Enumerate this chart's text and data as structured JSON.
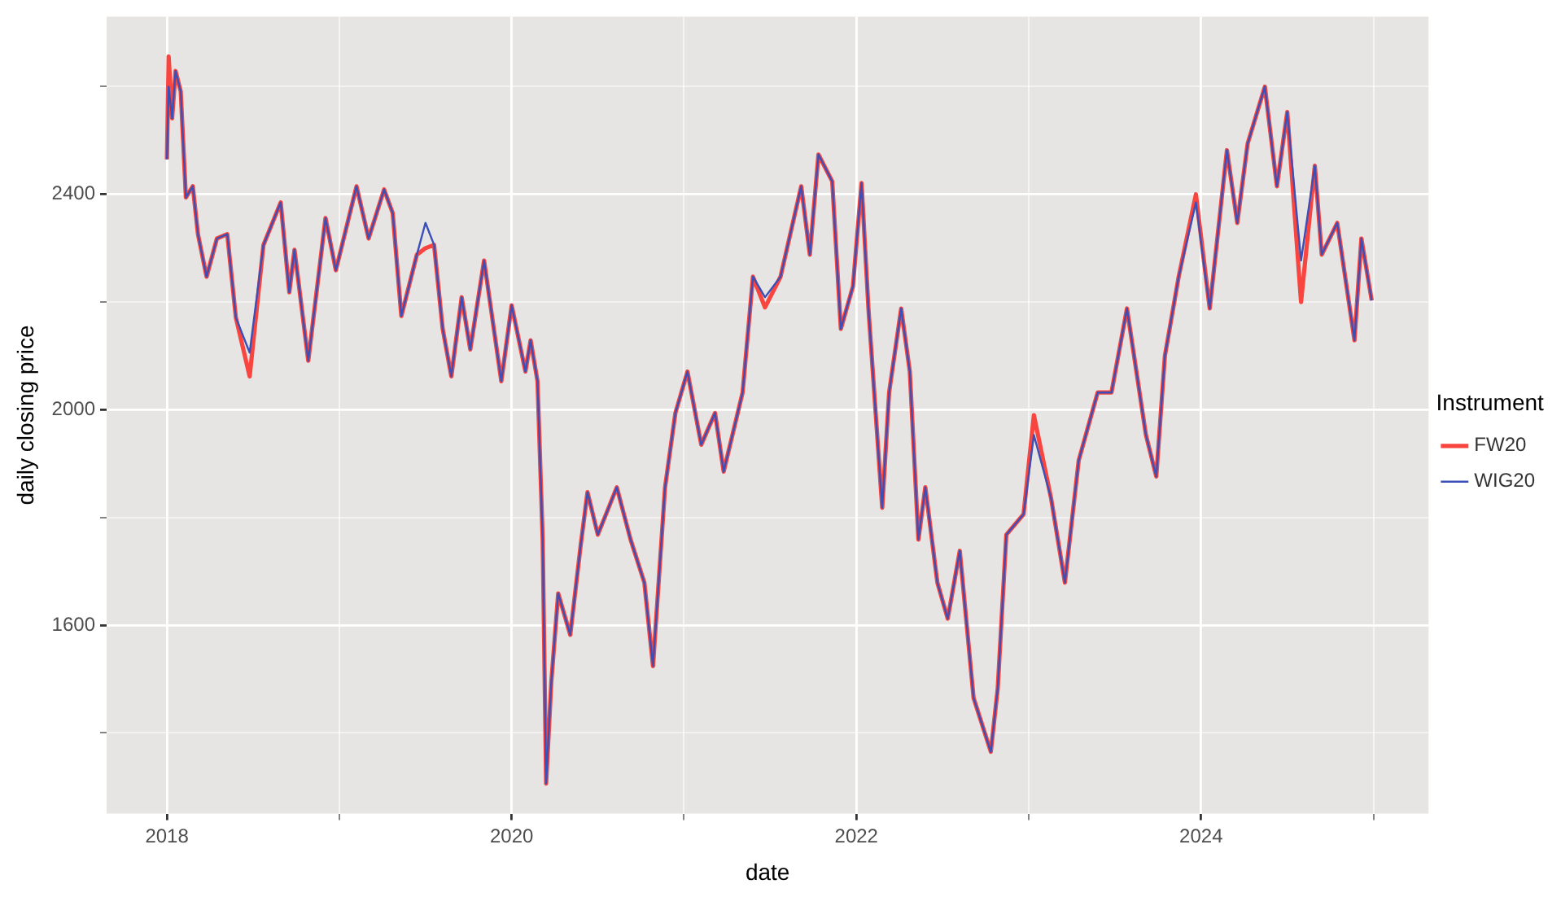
{
  "chart_data": {
    "type": "line",
    "xlabel": "date",
    "ylabel": "daily closing price",
    "legend_title": "Instrument",
    "legend": "right",
    "grid": true,
    "marker": "none",
    "line_style": "solid",
    "xlim": [
      2017.65,
      2025.32
    ],
    "ylim": [
      1250,
      2730
    ],
    "xticks": [
      2018,
      {
        "value": 2019,
        "label": null
      },
      2020,
      {
        "value": 2021,
        "label": null
      },
      2022,
      {
        "value": 2023,
        "label": null
      },
      2024,
      {
        "value": 2025,
        "label": null
      }
    ],
    "yticks": [
      {
        "value": 1400,
        "label": null
      },
      1600,
      {
        "value": 1800,
        "label": null
      },
      2000,
      {
        "value": 2200,
        "label": null
      },
      2400,
      {
        "value": 2600,
        "label": null
      }
    ],
    "x": [
      2018.0,
      2018.01,
      2018.03,
      2018.05,
      2018.08,
      2018.11,
      2018.15,
      2018.18,
      2018.23,
      2018.29,
      2018.35,
      2018.4,
      2018.48,
      2018.56,
      2018.66,
      2018.71,
      2018.74,
      2018.82,
      2018.92,
      2018.98,
      2019.1,
      2019.17,
      2019.26,
      2019.31,
      2019.36,
      2019.45,
      2019.5,
      2019.55,
      2019.6,
      2019.65,
      2019.71,
      2019.76,
      2019.84,
      2019.94,
      2020.0,
      2020.08,
      2020.11,
      2020.15,
      2020.18,
      2020.2,
      2020.23,
      2020.27,
      2020.34,
      2020.4,
      2020.44,
      2020.5,
      2020.61,
      2020.69,
      2020.77,
      2020.82,
      2020.89,
      2020.95,
      2021.02,
      2021.1,
      2021.18,
      2021.23,
      2021.34,
      2021.4,
      2021.47,
      2021.56,
      2021.68,
      2021.73,
      2021.78,
      2021.86,
      2021.91,
      2021.98,
      2022.03,
      2022.07,
      2022.15,
      2022.19,
      2022.26,
      2022.31,
      2022.36,
      2022.4,
      2022.47,
      2022.53,
      2022.6,
      2022.68,
      2022.78,
      2022.82,
      2022.87,
      2022.97,
      2023.03,
      2023.13,
      2023.21,
      2023.29,
      2023.4,
      2023.48,
      2023.57,
      2023.68,
      2023.74,
      2023.79,
      2023.87,
      2023.97,
      2024.05,
      2024.15,
      2024.21,
      2024.27,
      2024.37,
      2024.44,
      2024.5,
      2024.58,
      2024.66,
      2024.7,
      2024.79,
      2024.89,
      2024.93,
      2024.99
    ],
    "series": [
      {
        "name": "FW20",
        "color": "#f8453f",
        "values": [
          2465,
          2656,
          2541,
          2629,
          2591,
          2394,
          2415,
          2326,
          2247,
          2318,
          2326,
          2171,
          2062,
          2306,
          2385,
          2218,
          2297,
          2091,
          2356,
          2259,
          2415,
          2318,
          2409,
          2365,
          2174,
          2288,
          2300,
          2306,
          2150,
          2062,
          2209,
          2112,
          2277,
          2053,
          2194,
          2071,
          2129,
          2053,
          1760,
          1306,
          1494,
          1659,
          1582,
          1747,
          1847,
          1768,
          1856,
          1759,
          1679,
          1524,
          1856,
          1994,
          2071,
          1935,
          1994,
          1885,
          2032,
          2247,
          2190,
          2247,
          2415,
          2288,
          2474,
          2424,
          2150,
          2229,
          2421,
          2188,
          1818,
          2032,
          2188,
          2071,
          1759,
          1856,
          1679,
          1612,
          1738,
          1465,
          1365,
          1482,
          1768,
          1806,
          1990,
          1835,
          1679,
          1906,
          2032,
          2032,
          2188,
          1953,
          1876,
          2100,
          2247,
          2400,
          2188,
          2482,
          2347,
          2494,
          2600,
          2415,
          2553,
          2200,
          2453,
          2288,
          2347,
          2129,
          2318,
          2203
        ]
      },
      {
        "name": "WIG20",
        "color": "#3a4fb8",
        "values": [
          2465,
          2600,
          2541,
          2629,
          2591,
          2394,
          2415,
          2326,
          2247,
          2318,
          2326,
          2171,
          2106,
          2306,
          2385,
          2218,
          2297,
          2091,
          2356,
          2259,
          2415,
          2318,
          2409,
          2365,
          2174,
          2288,
          2347,
          2306,
          2150,
          2062,
          2209,
          2112,
          2277,
          2053,
          2194,
          2071,
          2129,
          2053,
          1760,
          1306,
          1494,
          1659,
          1582,
          1747,
          1847,
          1768,
          1856,
          1759,
          1679,
          1524,
          1856,
          1994,
          2071,
          1935,
          1994,
          1885,
          2032,
          2247,
          2209,
          2247,
          2415,
          2288,
          2474,
          2424,
          2150,
          2229,
          2421,
          2188,
          1818,
          2032,
          2188,
          2071,
          1759,
          1856,
          1679,
          1612,
          1738,
          1465,
          1365,
          1482,
          1768,
          1806,
          1953,
          1835,
          1679,
          1906,
          2032,
          2032,
          2188,
          1953,
          1876,
          2100,
          2247,
          2385,
          2188,
          2482,
          2347,
          2494,
          2600,
          2415,
          2553,
          2277,
          2453,
          2288,
          2347,
          2129,
          2318,
          2203
        ]
      }
    ]
  }
}
